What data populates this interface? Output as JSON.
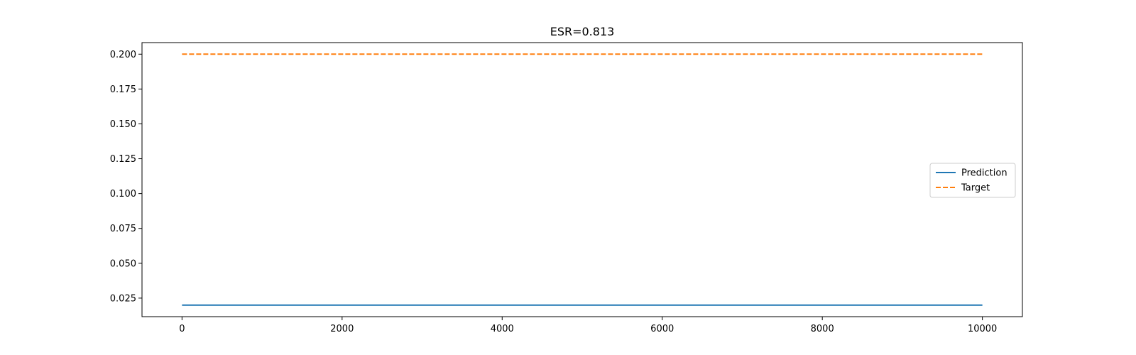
{
  "chart_data": {
    "type": "line",
    "title": "ESR=0.813",
    "xlabel": "",
    "ylabel": "",
    "xlim": [
      -500,
      10500
    ],
    "ylim": [
      0.0117,
      0.2083
    ],
    "xticks": [
      0,
      2000,
      4000,
      6000,
      8000,
      10000
    ],
    "xtick_labels": [
      "0",
      "2000",
      "4000",
      "6000",
      "8000",
      "10000"
    ],
    "yticks": [
      0.025,
      0.05,
      0.075,
      0.1,
      0.125,
      0.15,
      0.175,
      0.2
    ],
    "ytick_labels": [
      "0.025",
      "0.050",
      "0.075",
      "0.100",
      "0.125",
      "0.150",
      "0.175",
      "0.200"
    ],
    "grid": false,
    "legend_position": "center-right",
    "series": [
      {
        "name": "Prediction",
        "color": "#1f77b4",
        "style": "solid",
        "x": [
          0,
          10000
        ],
        "y": [
          0.02,
          0.02
        ]
      },
      {
        "name": "Target",
        "color": "#ff7f0e",
        "style": "dashed",
        "x": [
          0,
          10000
        ],
        "y": [
          0.2,
          0.2
        ]
      }
    ]
  }
}
